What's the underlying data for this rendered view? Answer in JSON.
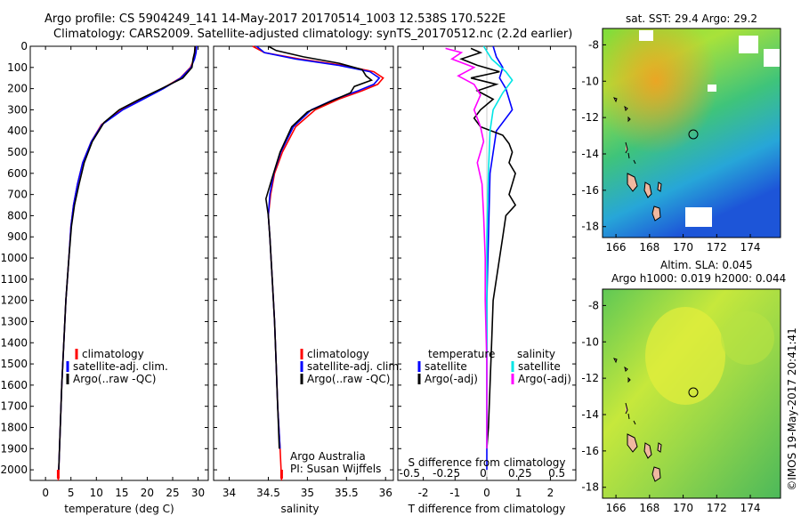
{
  "header": {
    "line1": "Argo profile: CS 5904249_141 14-May-2017 20170514_1003 12.538S 170.522E",
    "line2": "Climatology: CARS2009. Satellite-adjusted climatology: synTS_20170512.nc (2.2d earlier)"
  },
  "colors": {
    "clim": "#ff0000",
    "sat": "#0000ff",
    "argo": "#000000",
    "sal_sat": "#00e5e5",
    "sal_argo": "#ff00ff"
  },
  "chart_data": [
    {
      "type": "line",
      "title": "",
      "xlabel": "temperature (deg C)",
      "ylabel": "",
      "xlim": [
        -3,
        32
      ],
      "ylim": [
        0,
        2050
      ],
      "x_ticks": [
        0,
        5,
        10,
        15,
        20,
        25,
        30
      ],
      "y_ticks": [
        0,
        100,
        200,
        300,
        400,
        500,
        600,
        700,
        800,
        900,
        1000,
        1100,
        1200,
        1300,
        1400,
        1500,
        1600,
        1700,
        1800,
        1900,
        2000
      ],
      "legend": [
        "climatology",
        "satellite-adj. clim.",
        "Argo(..raw -QC)"
      ],
      "series": [
        {
          "name": "climatology",
          "color": "#ff0000",
          "points": [
            [
              29.6,
              0
            ],
            [
              29.5,
              30
            ],
            [
              29.2,
              60
            ],
            [
              28.5,
              100
            ],
            [
              26.5,
              150
            ],
            [
              23,
              200
            ],
            [
              19,
              250
            ],
            [
              15,
              300
            ],
            [
              11,
              370
            ],
            [
              9,
              450
            ],
            [
              7.3,
              550
            ],
            [
              6.3,
              650
            ],
            [
              5.5,
              750
            ],
            [
              5,
              850
            ],
            [
              4.6,
              1000
            ],
            [
              4,
              1200
            ],
            [
              3.6,
              1400
            ],
            [
              3.2,
              1600
            ],
            [
              2.9,
              1800
            ],
            [
              2.6,
              2000
            ],
            [
              2.5,
              2050
            ]
          ]
        },
        {
          "name": "satellite-adj. clim.",
          "color": "#0000ff",
          "points": [
            [
              29.7,
              0
            ],
            [
              29.6,
              30
            ],
            [
              29.3,
              60
            ],
            [
              28.6,
              100
            ],
            [
              26.6,
              150
            ],
            [
              23.2,
              200
            ],
            [
              19.2,
              250
            ],
            [
              15.2,
              300
            ],
            [
              11.1,
              370
            ],
            [
              9,
              450
            ],
            [
              7.3,
              550
            ],
            [
              6.3,
              650
            ],
            [
              5.5,
              750
            ],
            [
              5,
              850
            ],
            [
              4.6,
              1000
            ],
            [
              4,
              1200
            ],
            [
              3.6,
              1400
            ],
            [
              3.2,
              1600
            ],
            [
              2.9,
              1800
            ],
            [
              2.6,
              2000
            ]
          ]
        },
        {
          "name": "Argo(..raw -QC)",
          "color": "#000000",
          "points": [
            [
              29.4,
              0
            ],
            [
              29.3,
              30
            ],
            [
              29,
              60
            ],
            [
              28.8,
              100
            ],
            [
              27,
              150
            ],
            [
              22.8,
              200
            ],
            [
              18.5,
              250
            ],
            [
              14.5,
              300
            ],
            [
              11.5,
              360
            ],
            [
              9.2,
              450
            ],
            [
              7.6,
              550
            ],
            [
              6.6,
              650
            ],
            [
              5.7,
              750
            ],
            [
              5.1,
              850
            ],
            [
              4.6,
              1000
            ],
            [
              4,
              1200
            ],
            [
              3.6,
              1400
            ],
            [
              3.2,
              1600
            ],
            [
              2.9,
              1800
            ],
            [
              2.6,
              2000
            ]
          ]
        }
      ]
    },
    {
      "type": "line",
      "title": "",
      "xlabel": "salinity",
      "ylabel": "",
      "xlim": [
        33.8,
        36.1
      ],
      "ylim": [
        0,
        2050
      ],
      "x_ticks": [
        34,
        34.5,
        35,
        35.5,
        36
      ],
      "legend": [
        "climatology",
        "satellite-adj. clim.",
        "Argo(..raw -QC)"
      ],
      "annotation": [
        "Argo Australia",
        "PI: Susan Wijffels"
      ],
      "series": [
        {
          "name": "climatology",
          "color": "#ff0000",
          "points": [
            [
              34.3,
              0
            ],
            [
              34.45,
              30
            ],
            [
              34.9,
              60
            ],
            [
              35.45,
              90
            ],
            [
              35.85,
              120
            ],
            [
              35.97,
              150
            ],
            [
              35.9,
              180
            ],
            [
              35.7,
              210
            ],
            [
              35.4,
              250
            ],
            [
              35.1,
              300
            ],
            [
              34.85,
              380
            ],
            [
              34.68,
              500
            ],
            [
              34.58,
              600
            ],
            [
              34.53,
              700
            ],
            [
              34.5,
              800
            ],
            [
              34.52,
              900
            ],
            [
              34.55,
              1100
            ],
            [
              34.58,
              1300
            ],
            [
              34.6,
              1500
            ],
            [
              34.62,
              1700
            ],
            [
              34.65,
              1900
            ],
            [
              34.67,
              2050
            ]
          ]
        },
        {
          "name": "satellite-adj. clim.",
          "color": "#0000ff",
          "points": [
            [
              34.35,
              0
            ],
            [
              34.45,
              30
            ],
            [
              34.85,
              60
            ],
            [
              35.4,
              90
            ],
            [
              35.8,
              120
            ],
            [
              35.92,
              150
            ],
            [
              35.85,
              180
            ],
            [
              35.65,
              210
            ],
            [
              35.35,
              250
            ],
            [
              35.05,
              300
            ],
            [
              34.82,
              380
            ],
            [
              34.66,
              500
            ],
            [
              34.57,
              600
            ],
            [
              34.52,
              700
            ],
            [
              34.5,
              800
            ],
            [
              34.52,
              900
            ],
            [
              34.55,
              1100
            ],
            [
              34.58,
              1300
            ],
            [
              34.6,
              1500
            ],
            [
              34.62,
              1700
            ],
            [
              34.65,
              1900
            ]
          ]
        },
        {
          "name": "Argo(..raw -QC)",
          "color": "#000000",
          "points": [
            [
              34.5,
              0
            ],
            [
              34.6,
              20
            ],
            [
              34.95,
              50
            ],
            [
              35.4,
              80
            ],
            [
              35.7,
              110
            ],
            [
              35.75,
              140
            ],
            [
              35.82,
              160
            ],
            [
              35.6,
              190
            ],
            [
              35.55,
              220
            ],
            [
              35.3,
              260
            ],
            [
              35.0,
              310
            ],
            [
              34.8,
              380
            ],
            [
              34.65,
              500
            ],
            [
              34.55,
              620
            ],
            [
              34.47,
              720
            ],
            [
              34.5,
              800
            ],
            [
              34.52,
              900
            ],
            [
              34.55,
              1100
            ],
            [
              34.58,
              1300
            ],
            [
              34.6,
              1500
            ],
            [
              34.62,
              1700
            ],
            [
              34.64,
              1900
            ]
          ]
        }
      ]
    },
    {
      "type": "line",
      "title": "",
      "xlabel": "T difference from climatology",
      "x2label": "S difference from climatology",
      "xlim": [
        -2.8,
        2.8
      ],
      "ylim": [
        0,
        2050
      ],
      "x_ticks": [
        -2,
        -1,
        0,
        1,
        2
      ],
      "x_tick_labels": [
        "-2",
        "-1",
        "0",
        "1",
        "2"
      ],
      "x2_tick_labels": [
        "-0.5",
        "-0.25",
        "0",
        "0.25",
        "0.5"
      ],
      "legend_temperature": {
        "title": "temperature",
        "items": [
          "satellite",
          "Argo(-adj)"
        ]
      },
      "legend_salinity": {
        "title": "salinity",
        "items": [
          "satellite",
          "Argo(-adj)"
        ]
      },
      "series": [
        {
          "name": "T satellite",
          "color": "#0000ff",
          "points": [
            [
              0.2,
              0
            ],
            [
              0.3,
              50
            ],
            [
              0.5,
              100
            ],
            [
              0.4,
              150
            ],
            [
              0.6,
              200
            ],
            [
              0.8,
              300
            ],
            [
              0.3,
              400
            ],
            [
              0.1,
              600
            ],
            [
              0.05,
              900
            ],
            [
              0,
              1200
            ],
            [
              0,
              1600
            ],
            [
              0,
              2000
            ]
          ]
        },
        {
          "name": "T Argo(-adj)",
          "color": "#000000",
          "points": [
            [
              -0.5,
              10
            ],
            [
              -0.2,
              30
            ],
            [
              -0.8,
              60
            ],
            [
              -0.3,
              90
            ],
            [
              0.4,
              120
            ],
            [
              -0.5,
              150
            ],
            [
              0.3,
              180
            ],
            [
              -0.3,
              210
            ],
            [
              0.2,
              250
            ],
            [
              -0.2,
              300
            ],
            [
              -0.4,
              340
            ],
            [
              -0.2,
              380
            ],
            [
              0.5,
              420
            ],
            [
              0.7,
              460
            ],
            [
              0.8,
              500
            ],
            [
              0.7,
              550
            ],
            [
              0.9,
              600
            ],
            [
              0.8,
              650
            ],
            [
              0.7,
              700
            ],
            [
              0.9,
              750
            ],
            [
              0.6,
              800
            ],
            [
              0.5,
              900
            ],
            [
              0.4,
              1000
            ],
            [
              0.3,
              1100
            ],
            [
              0.2,
              1200
            ],
            [
              0.15,
              1400
            ],
            [
              0.1,
              1600
            ],
            [
              0.05,
              1800
            ],
            [
              0,
              1900
            ]
          ]
        },
        {
          "name": "S satellite",
          "color": "#00e5e5",
          "points": [
            [
              -0.1,
              0
            ],
            [
              0.15,
              60
            ],
            [
              0.6,
              120
            ],
            [
              0.8,
              160
            ],
            [
              0.5,
              220
            ],
            [
              0.2,
              300
            ],
            [
              0.1,
              400
            ],
            [
              0.05,
              600
            ],
            [
              0,
              900
            ],
            [
              0,
              1200
            ],
            [
              0,
              1600
            ],
            [
              0,
              1900
            ]
          ]
        },
        {
          "name": "S Argo(-adj)",
          "color": "#ff00ff",
          "points": [
            [
              -1.3,
              10
            ],
            [
              -0.8,
              30
            ],
            [
              -1.1,
              60
            ],
            [
              -0.4,
              100
            ],
            [
              -0.9,
              140
            ],
            [
              -0.4,
              180
            ],
            [
              -0.2,
              230
            ],
            [
              -0.4,
              300
            ],
            [
              -0.2,
              380
            ],
            [
              -0.1,
              450
            ],
            [
              -0.3,
              550
            ],
            [
              -0.15,
              650
            ],
            [
              -0.1,
              800
            ],
            [
              -0.05,
              1000
            ],
            [
              -0.05,
              1200
            ],
            [
              0,
              1500
            ],
            [
              0,
              1800
            ],
            [
              0,
              1900
            ]
          ]
        }
      ]
    },
    {
      "type": "heatmap",
      "title": "sat. SST: 29.4  Argo: 29.2",
      "x_ticks": [
        166,
        168,
        170,
        172,
        174
      ],
      "y_ticks": [
        -8,
        -10,
        -12,
        -14,
        -16,
        -18
      ],
      "xlim": [
        165.2,
        175.8
      ],
      "ylim": [
        -18.6,
        -7.1
      ],
      "marker": [
        170.52,
        -12.54
      ]
    },
    {
      "type": "heatmap",
      "title_line1": "Altim. SLA: 0.045",
      "title_line2": "Argo h1000: 0.019  h2000: 0.044",
      "x_ticks": [
        166,
        168,
        170,
        172,
        174
      ],
      "y_ticks": [
        -8,
        -10,
        -12,
        -14,
        -16,
        -18
      ],
      "xlim": [
        165.2,
        175.8
      ],
      "ylim": [
        -18.6,
        -7.1
      ],
      "marker": [
        170.52,
        -12.54
      ]
    }
  ],
  "watermark": "©IMOS 19-May-2017 20:41:41"
}
